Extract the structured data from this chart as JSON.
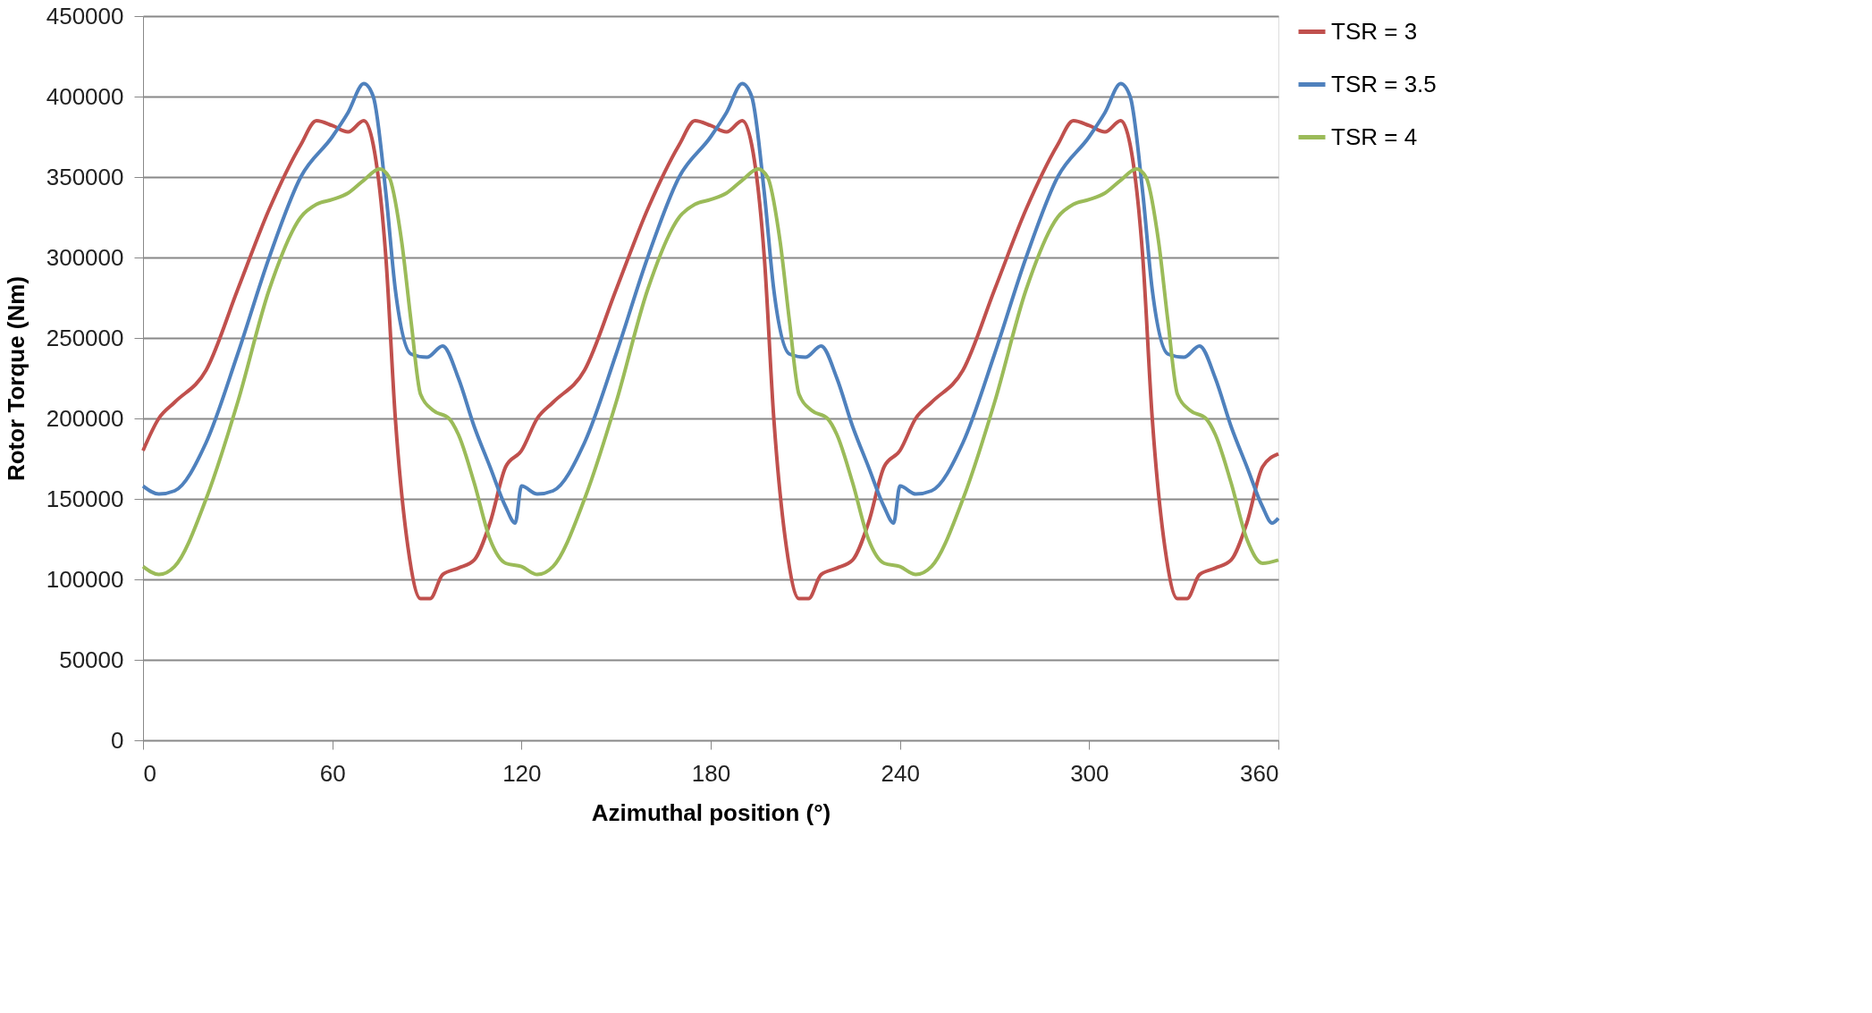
{
  "chart_data": {
    "type": "line",
    "xlabel": "Azimuthal position (°)",
    "ylabel": "Rotor Torque  (Nm)",
    "xlim": [
      0,
      360
    ],
    "xticks": [
      0,
      60,
      120,
      180,
      240,
      300,
      360
    ],
    "ylim": [
      0,
      450000
    ],
    "yticks": [
      0,
      50000,
      100000,
      150000,
      200000,
      250000,
      300000,
      350000,
      400000,
      450000
    ],
    "grid": "y",
    "legend": "right",
    "line_style": "solid",
    "marker": "none",
    "series": [
      {
        "name": "TSR = 3",
        "color": "#c0504d",
        "x": [
          0,
          5,
          10,
          20,
          30,
          40,
          50,
          55,
          60,
          65,
          70,
          73,
          77,
          80,
          84,
          88,
          91,
          95,
          100,
          105,
          110,
          115,
          120,
          125,
          130,
          140,
          150,
          160,
          170,
          175,
          180,
          185,
          190,
          193,
          197,
          200,
          204,
          208,
          211,
          215,
          220,
          225,
          230,
          235,
          240,
          245,
          250,
          260,
          270,
          280,
          290,
          295,
          300,
          305,
          310,
          313,
          317,
          320,
          324,
          328,
          331,
          335,
          340,
          345,
          350,
          355,
          360
        ],
        "values": [
          180000,
          200000,
          210000,
          230000,
          280000,
          330000,
          370000,
          385000,
          382000,
          378000,
          385000,
          370000,
          300000,
          200000,
          120000,
          88000,
          88000,
          103000,
          107000,
          112000,
          135000,
          170000,
          180000,
          200000,
          210000,
          230000,
          280000,
          330000,
          370000,
          385000,
          382000,
          378000,
          385000,
          370000,
          300000,
          200000,
          120000,
          88000,
          88000,
          103000,
          107000,
          112000,
          135000,
          170000,
          180000,
          200000,
          210000,
          230000,
          280000,
          330000,
          370000,
          385000,
          382000,
          378000,
          385000,
          370000,
          300000,
          200000,
          120000,
          88000,
          88000,
          103000,
          107000,
          112000,
          135000,
          170000,
          178000
        ]
      },
      {
        "name": "TSR = 3.5",
        "color": "#4f81bd",
        "x": [
          0,
          5,
          10,
          20,
          30,
          40,
          50,
          60,
          65,
          70,
          73,
          77,
          80,
          85,
          90,
          95,
          100,
          105,
          110,
          115,
          118,
          120,
          125,
          130,
          140,
          150,
          160,
          170,
          180,
          185,
          190,
          193,
          197,
          200,
          205,
          210,
          215,
          220,
          225,
          230,
          235,
          238,
          240,
          245,
          250,
          260,
          270,
          280,
          290,
          300,
          305,
          310,
          313,
          317,
          320,
          325,
          330,
          335,
          340,
          345,
          350,
          355,
          358,
          360
        ],
        "values": [
          158000,
          153000,
          155000,
          185000,
          240000,
          300000,
          350000,
          375000,
          390000,
          408000,
          400000,
          340000,
          280000,
          240000,
          238000,
          245000,
          225000,
          195000,
          170000,
          145000,
          135000,
          158000,
          153000,
          155000,
          185000,
          240000,
          300000,
          350000,
          375000,
          390000,
          408000,
          400000,
          340000,
          280000,
          240000,
          238000,
          245000,
          225000,
          195000,
          170000,
          145000,
          135000,
          158000,
          153000,
          155000,
          185000,
          240000,
          300000,
          350000,
          375000,
          390000,
          408000,
          400000,
          340000,
          280000,
          240000,
          238000,
          245000,
          225000,
          195000,
          170000,
          145000,
          135000,
          138000
        ]
      },
      {
        "name": "TSR = 4",
        "color": "#9bbb59",
        "x": [
          0,
          5,
          10,
          20,
          30,
          40,
          50,
          55,
          60,
          65,
          70,
          75,
          78,
          82,
          85,
          88,
          92,
          97,
          100,
          105,
          110,
          115,
          120,
          125,
          130,
          140,
          150,
          160,
          170,
          175,
          180,
          185,
          190,
          195,
          198,
          202,
          205,
          208,
          212,
          217,
          220,
          225,
          230,
          235,
          240,
          245,
          250,
          260,
          270,
          280,
          290,
          295,
          300,
          305,
          310,
          315,
          318,
          322,
          325,
          328,
          332,
          337,
          340,
          345,
          350,
          355,
          360
        ],
        "values": [
          108000,
          103000,
          108000,
          150000,
          210000,
          280000,
          325000,
          333000,
          336000,
          340000,
          348000,
          355000,
          350000,
          310000,
          260000,
          215000,
          205000,
          200000,
          190000,
          160000,
          125000,
          110000,
          108000,
          103000,
          108000,
          150000,
          210000,
          280000,
          325000,
          333000,
          336000,
          340000,
          348000,
          355000,
          350000,
          310000,
          260000,
          215000,
          205000,
          200000,
          190000,
          160000,
          125000,
          110000,
          108000,
          103000,
          108000,
          150000,
          210000,
          280000,
          325000,
          333000,
          336000,
          340000,
          348000,
          355000,
          350000,
          310000,
          260000,
          215000,
          205000,
          200000,
          190000,
          160000,
          125000,
          110000,
          112000
        ]
      }
    ]
  }
}
